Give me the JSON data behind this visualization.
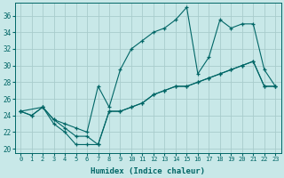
{
  "xlabel": "Humidex (Indice chaleur)",
  "bg_color": "#c8e8e8",
  "grid_color": "#a8cccc",
  "line_color": "#006666",
  "xlim": [
    -0.5,
    23.5
  ],
  "ylim": [
    19.5,
    37.5
  ],
  "xticks": [
    0,
    1,
    2,
    3,
    4,
    5,
    6,
    7,
    8,
    9,
    10,
    11,
    12,
    13,
    14,
    15,
    16,
    17,
    18,
    19,
    20,
    21,
    22,
    23
  ],
  "yticks": [
    20,
    22,
    24,
    26,
    28,
    30,
    32,
    34,
    36
  ],
  "series1_x": [
    0,
    1,
    2,
    3,
    4,
    5,
    6,
    7,
    8,
    9,
    10,
    11,
    12,
    13,
    14,
    15,
    16,
    17,
    18,
    19,
    20,
    21,
    22,
    23
  ],
  "series1_y": [
    24.5,
    24.0,
    25.0,
    23.5,
    23.0,
    22.5,
    22.0,
    27.5,
    25.0,
    29.5,
    32.0,
    33.0,
    34.0,
    34.5,
    35.5,
    37.0,
    29.0,
    31.0,
    35.5,
    34.5,
    35.0,
    35.0,
    29.5,
    27.5
  ],
  "series2_x": [
    0,
    1,
    2,
    3,
    4,
    5,
    6,
    7,
    8,
    9,
    10,
    11,
    12,
    13,
    14,
    15,
    16,
    17,
    18,
    19,
    20,
    21,
    22,
    23
  ],
  "series2_y": [
    24.5,
    24.0,
    25.0,
    23.0,
    22.0,
    20.5,
    20.5,
    20.5,
    24.5,
    24.5,
    25.0,
    25.5,
    26.5,
    27.0,
    27.5,
    27.5,
    28.0,
    28.5,
    29.0,
    29.5,
    30.0,
    30.5,
    27.5,
    27.5
  ],
  "series3_x": [
    0,
    2,
    3,
    4,
    5,
    6,
    7,
    8,
    9,
    10,
    11,
    12,
    13,
    14,
    15,
    16,
    17,
    18,
    19,
    20,
    21,
    22,
    23
  ],
  "series3_y": [
    24.5,
    25.0,
    23.5,
    22.5,
    21.5,
    21.5,
    20.5,
    24.5,
    24.5,
    25.0,
    25.5,
    26.5,
    27.0,
    27.5,
    27.5,
    28.0,
    28.5,
    29.0,
    29.5,
    30.0,
    30.5,
    27.5,
    27.5
  ]
}
